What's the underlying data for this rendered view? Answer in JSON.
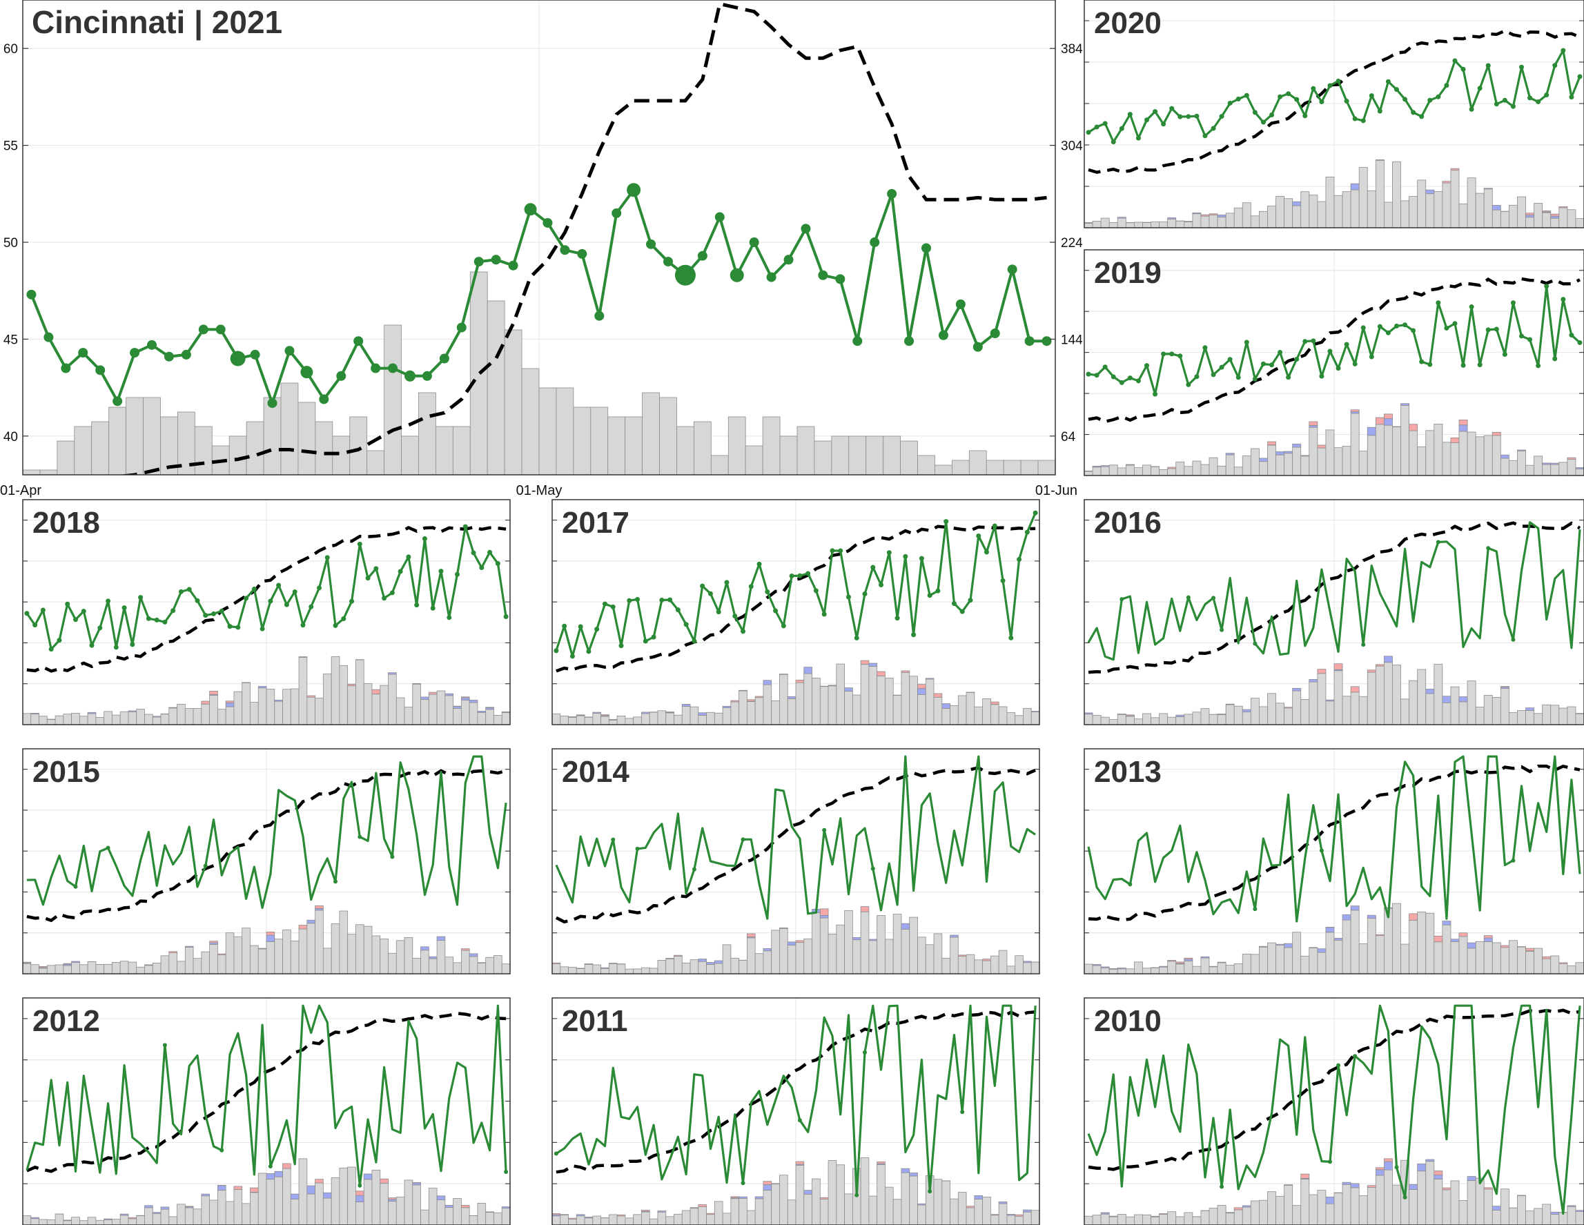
{
  "colors": {
    "line": "#2a8a35",
    "dashed": "#000000",
    "bar_base": "#d7d7d7",
    "bar_blue": "#9fa9f2",
    "bar_pink": "#f6a8a8",
    "grid": "#e4e4e4",
    "frame": "#333333",
    "title": "#333333"
  },
  "main": {
    "title": "Cincinnati | 2021",
    "left_ticks": [
      "40",
      "45",
      "50",
      "55",
      "60"
    ],
    "right_ticks": [
      "64",
      "144",
      "224",
      "304",
      "384"
    ],
    "x_ticks": [
      "01-Apr",
      "01-May",
      "01-Jun"
    ]
  },
  "chart_data": {
    "type": "bar+line",
    "x_range": [
      "01-Apr",
      "01-Jun"
    ],
    "y_left": [
      38,
      62.5
    ],
    "y_right": [
      0,
      420
    ],
    "main": {
      "year": "2021",
      "green_line": [
        47.3,
        45.1,
        43.5,
        44.3,
        43.4,
        41.8,
        44.3,
        44.7,
        44.1,
        44.2,
        45.5,
        45.5,
        44.0,
        44.2,
        41.7,
        44.4,
        43.3,
        41.9,
        43.1,
        44.9,
        43.5,
        43.5,
        43.1,
        43.1,
        44.0,
        45.6,
        49.0,
        49.1,
        48.8,
        51.7,
        51.0,
        49.6,
        49.4,
        46.2,
        51.5,
        52.7,
        49.9,
        49.0,
        48.3,
        49.3,
        51.3,
        48.3,
        50.0,
        48.2,
        49.1,
        50.7,
        48.3,
        48.1,
        44.9,
        50.0,
        52.5,
        44.9,
        49.7,
        45.2,
        46.8,
        44.6,
        45.3,
        48.6,
        44.9,
        44.9
      ],
      "dashed_line": [
        37.7,
        37.6,
        37.7,
        37.7,
        37.8,
        37.9,
        38.0,
        38.2,
        38.4,
        38.5,
        38.6,
        38.7,
        38.8,
        39.0,
        39.3,
        39.3,
        39.2,
        39.1,
        39.1,
        39.3,
        39.8,
        40.3,
        40.6,
        41.0,
        41.2,
        41.9,
        43.2,
        44.0,
        45.8,
        48.2,
        49.1,
        50.5,
        52.5,
        54.7,
        56.6,
        57.3,
        57.3,
        57.3,
        57.3,
        58.4,
        62.3,
        62.1,
        61.9,
        61.1,
        60.2,
        59.5,
        59.5,
        59.9,
        60.1,
        58.0,
        56.1,
        53.4,
        52.2,
        52.2,
        52.2,
        52.3,
        52.2,
        52.2,
        52.2,
        52.3
      ],
      "bars_base": [
        1,
        1,
        7,
        10,
        11,
        14,
        16,
        16,
        12,
        13,
        10,
        6,
        8,
        11,
        16,
        19,
        15,
        11,
        8,
        12,
        5,
        31,
        8,
        17,
        10,
        10,
        42,
        36,
        30,
        22,
        18,
        18,
        14,
        14,
        12,
        12,
        17,
        16,
        10,
        11,
        4,
        12,
        6,
        12,
        8,
        10,
        7,
        8,
        8,
        8,
        8,
        7,
        4,
        2,
        3,
        5,
        3,
        3,
        3,
        3
      ],
      "bars_blue": [
        0,
        0,
        0,
        0,
        0,
        0,
        0,
        0,
        0,
        0,
        0,
        0,
        0,
        0,
        0,
        0,
        0,
        0,
        0,
        0,
        0,
        0,
        0,
        0,
        0,
        0,
        0,
        0,
        0,
        0,
        0,
        0,
        0,
        0,
        0,
        0,
        0,
        0,
        0,
        0,
        0,
        0,
        0,
        0,
        0,
        0,
        0,
        0,
        0,
        0,
        0,
        0,
        0,
        0,
        0,
        0,
        0,
        0,
        0,
        0
      ],
      "bars_pink": [
        0,
        0,
        0,
        0,
        0,
        0,
        0,
        0,
        0,
        0,
        0,
        0,
        0,
        0,
        0,
        0,
        0,
        0,
        0,
        0,
        0,
        0,
        0,
        0,
        0,
        0,
        0,
        0,
        0,
        0,
        0,
        0,
        0,
        0,
        0,
        0,
        0,
        0,
        0,
        0,
        0,
        0,
        0,
        0,
        0,
        0,
        0,
        0,
        0,
        0,
        0,
        0,
        0,
        0,
        0,
        0,
        0,
        0,
        0,
        0
      ]
    },
    "years": [
      "2020",
      "2019",
      "2018",
      "2017",
      "2016",
      "2015",
      "2014",
      "2013",
      "2012",
      "2011",
      "2010"
    ]
  }
}
